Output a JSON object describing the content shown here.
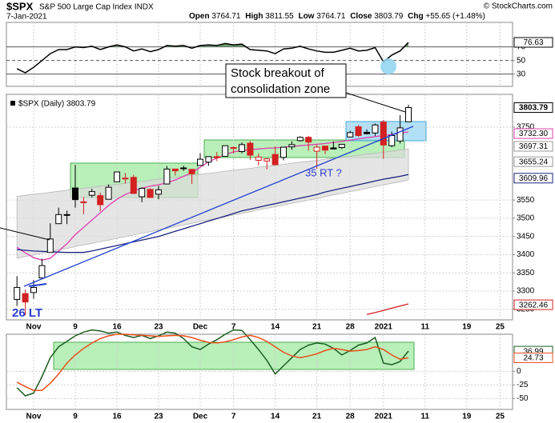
{
  "header": {
    "symbol": "$SPX",
    "name": "S&P 500 Large Cap Index INDX",
    "date": "7-Jan-2021",
    "source": "© StockCharts.com",
    "quote": [
      {
        "label": "Open",
        "text": "3764.71"
      },
      {
        "label": "High",
        "text": "3811.55"
      },
      {
        "label": "Low",
        "text": "3764.71"
      },
      {
        "label": "Close",
        "text": "3803.79"
      },
      {
        "label": "Chg",
        "text": "+55.65 (+1.48%)"
      }
    ]
  },
  "annotations": {
    "breakout": [
      "Stock breakout of",
      "consolidation zone"
    ],
    "rt": "35 RT ?",
    "lt": "26 LT"
  },
  "chart_data": [
    {
      "type": "line",
      "ylim": [
        12,
        106
      ],
      "yticks": [
        30,
        50,
        70
      ],
      "grid": true,
      "overbought": 70,
      "oversold": 30,
      "above_color": "#6f9a6f",
      "below_color": "#8a4b8a",
      "value_boxes": true,
      "series": [
        {
          "color": "#000000",
          "values": [
            38,
            32,
            40,
            50,
            60,
            66,
            66,
            70,
            69,
            71,
            66,
            70,
            73,
            70,
            64,
            67,
            63,
            66,
            72,
            71,
            72,
            68,
            72,
            73,
            72,
            75,
            73,
            74,
            66,
            65,
            64,
            60,
            67,
            68,
            71,
            67,
            64,
            62,
            62,
            65,
            68,
            64,
            65,
            69,
            48,
            58,
            64,
            76.63
          ]
        }
      ]
    },
    {
      "type": "candlestick",
      "legend": "$SPX (Daily) 3803.79",
      "categories": [
        null,
        null,
        "Nov",
        null,
        null,
        null,
        null,
        "9",
        null,
        null,
        null,
        null,
        "16",
        null,
        null,
        null,
        null,
        "23",
        null,
        null,
        null,
        null,
        "Dec",
        null,
        null,
        null,
        "7",
        null,
        null,
        null,
        null,
        "14",
        null,
        null,
        null,
        null,
        "21",
        null,
        null,
        null,
        "28",
        null,
        null,
        null,
        "2021",
        null,
        null,
        null,
        null,
        "11",
        null,
        null,
        null,
        null,
        "19",
        null,
        null,
        null,
        "25"
      ],
      "open": [
        3277,
        3293,
        3296,
        3336,
        3406,
        3485,
        3508,
        3583,
        3544,
        3563,
        3562,
        3552,
        3600,
        3610,
        3612,
        3559,
        3579,
        3566,
        3594,
        3635,
        3638,
        3634,
        3645,
        3654,
        3669,
        3670,
        3694,
        3683,
        3706,
        3659,
        3657,
        3675,
        3667,
        3696,
        3713,
        3722,
        3684,
        3698,
        3693,
        3694,
        3723,
        3751,
        3736,
        3734,
        3764,
        3699,
        3712,
        3764.71,
        null,
        null,
        null,
        null,
        null,
        null,
        null,
        null,
        null,
        null,
        null
      ],
      "high": [
        3341,
        3304,
        3330,
        3389,
        3486,
        3529,
        3521,
        3646,
        3558,
        3581,
        3570,
        3593,
        3628,
        3624,
        3619,
        3585,
        3582,
        3589,
        3643,
        3635,
        3644,
        3634,
        3678,
        3670,
        3682,
        3699,
        3697,
        3708,
        3712,
        3678,
        3665,
        3697,
        3695,
        3711,
        3725,
        3726,
        3702,
        3698,
        3711,
        3703,
        3740,
        3756,
        3744,
        3760,
        3770,
        3738,
        3783,
        3811.55,
        null,
        null,
        null,
        null,
        null,
        null,
        null,
        null,
        null,
        null,
        null
      ],
      "low": [
        3259,
        3233,
        3279,
        3336,
        3405,
        3485,
        3484,
        3529,
        3511,
        3557,
        3519,
        3552,
        3600,
        3595,
        3567,
        3544,
        3556,
        3552,
        3594,
        3617,
        3630,
        3594,
        3645,
        3644,
        3657,
        3670,
        3678,
        3678,
        3660,
        3645,
        3634,
        3645,
        3659,
        3688,
        3710,
        3685,
        3636,
        3676,
        3689,
        3690,
        3723,
        3723,
        3730,
        3726,
        3663,
        3695,
        3705,
        3764.71,
        null,
        null,
        null,
        null,
        null,
        null,
        null,
        null,
        null,
        null,
        null
      ],
      "close": [
        3310,
        3270,
        3310,
        3370,
        3443,
        3510,
        3510,
        3551,
        3545,
        3573,
        3537,
        3585,
        3627,
        3610,
        3568,
        3582,
        3557,
        3578,
        3635,
        3630,
        3638,
        3622,
        3662,
        3669,
        3666,
        3699,
        3692,
        3702,
        3673,
        3668,
        3663,
        3647,
        3695,
        3702,
        3722,
        3709,
        3695,
        3687,
        3690,
        3703,
        3735,
        3727,
        3732,
        3756,
        3701,
        3727,
        3748,
        3803.79,
        null,
        null,
        null,
        null,
        null,
        null,
        null,
        null,
        null,
        null,
        null
      ],
      "up_color": "#000000",
      "down_color": "#d32020",
      "ylim": [
        3221,
        3840
      ],
      "yticks": [
        3250,
        3300,
        3350,
        3400,
        3450,
        3500,
        3550,
        3750
      ],
      "grid": true,
      "band": {
        "color": "#dcdcdc",
        "upper": [
          3560,
          3563,
          3566,
          3568,
          3571,
          3574,
          3577,
          3579,
          3582,
          3585,
          3588,
          3590,
          3593,
          3596,
          3599,
          3601,
          3604,
          3607,
          3610,
          3612,
          3615,
          3618,
          3621,
          3623,
          3626,
          3629,
          3632,
          3634,
          3637,
          3640,
          3643,
          3645,
          3648,
          3651,
          3654,
          3656,
          3659,
          3662,
          3665,
          3667,
          3670,
          3673,
          3676,
          3678,
          3681,
          3684,
          3687,
          3690,
          null,
          null,
          null,
          null,
          null,
          null,
          null,
          null,
          null,
          null,
          null
        ],
        "lower": [
          3390,
          3395,
          3399,
          3404,
          3408,
          3413,
          3417,
          3422,
          3427,
          3431,
          3436,
          3440,
          3445,
          3449,
          3454,
          3459,
          3463,
          3468,
          3472,
          3477,
          3481,
          3486,
          3491,
          3495,
          3500,
          3504,
          3509,
          3513,
          3518,
          3523,
          3527,
          3532,
          3536,
          3541,
          3545,
          3550,
          3554,
          3559,
          3564,
          3568,
          3573,
          3577,
          3582,
          3587,
          3591,
          3596,
          3600,
          3605,
          null,
          null,
          null,
          null,
          null,
          null,
          null,
          null,
          null,
          null,
          null
        ]
      },
      "series": [
        {
          "color": "#e040b0",
          "values": [
            3420,
            3405,
            3392,
            3385,
            3390,
            3410,
            3430,
            3455,
            3475,
            3495,
            3515,
            3535,
            3552,
            3565,
            3575,
            3582,
            3588,
            3592,
            3597,
            3605,
            3615,
            3625,
            3640,
            3655,
            3665,
            3675,
            3682,
            3686,
            3688,
            3690,
            3692,
            3693,
            3695,
            3697,
            3699,
            3701,
            3703,
            3705,
            3708,
            3711,
            3714,
            3718,
            3721,
            3724,
            3727,
            3730,
            3733,
            3737,
            null,
            null,
            null,
            null,
            null,
            null,
            null,
            null,
            null,
            null,
            null
          ]
        },
        {
          "color": "#1a237e",
          "values": [
            3414,
            3412,
            3410,
            3409,
            3408,
            3407,
            3406,
            3406,
            3406,
            3410,
            3415,
            3420,
            3425,
            3430,
            3435,
            3440,
            3445,
            3450,
            3457,
            3464,
            3471,
            3478,
            3485,
            3492,
            3499,
            3506,
            3513,
            3520,
            3525,
            3530,
            3535,
            3540,
            3545,
            3550,
            3555,
            3560,
            3565,
            3572,
            3577,
            3582,
            3587,
            3592,
            3597,
            3602,
            3607,
            3611,
            3615,
            3620,
            null,
            null,
            null,
            null,
            null,
            null,
            null,
            null,
            null,
            null,
            null
          ]
        },
        {
          "color": "#d32020",
          "values": [
            null,
            null,
            null,
            null,
            null,
            null,
            null,
            null,
            null,
            null,
            null,
            null,
            null,
            null,
            null,
            null,
            null,
            null,
            null,
            null,
            null,
            null,
            null,
            null,
            null,
            null,
            null,
            null,
            null,
            null,
            null,
            null,
            null,
            null,
            null,
            null,
            null,
            null,
            null,
            null,
            null,
            null,
            3236,
            3241,
            3247,
            3253,
            3259,
            3265,
            null,
            null,
            null,
            null,
            null,
            null,
            null,
            null,
            null,
            null,
            null
          ]
        }
      ],
      "price_labels": [
        3803.79,
        {
          "value": 3732.3,
          "label": "3732.30"
        },
        3697.31,
        3655.24,
        3609.96,
        3262.46
      ],
      "price_label_colors": [
        "#000000",
        "#e040b0",
        "#999999",
        "#999999",
        "#1a237e",
        "#d32020"
      ]
    },
    {
      "type": "line",
      "categories": [
        null,
        null,
        "Nov",
        null,
        null,
        null,
        null,
        "9",
        null,
        null,
        null,
        null,
        "16",
        null,
        null,
        null,
        null,
        "23",
        null,
        null,
        null,
        null,
        "Dec",
        null,
        null,
        null,
        "7",
        null,
        null,
        null,
        null,
        "14",
        null,
        null,
        null,
        null,
        "21",
        null,
        null,
        null,
        "28",
        null,
        null,
        null,
        "2021",
        null,
        null,
        null,
        null,
        "11",
        null,
        null,
        null,
        null,
        "19",
        null,
        null,
        null,
        "25"
      ],
      "ylim": [
        -70,
        68
      ],
      "yticks": [
        -50,
        -25,
        0
      ],
      "grid": true,
      "value_boxes": true,
      "series": [
        {
          "color": "#1b5e20",
          "values": [
            -30,
            -45,
            -40,
            -10,
            25,
            45,
            55,
            65,
            72,
            76,
            74,
            70,
            72,
            66,
            62,
            66,
            60,
            65,
            72,
            70,
            60,
            45,
            40,
            50,
            58,
            68,
            76,
            75,
            58,
            40,
            20,
            -5,
            10,
            25,
            40,
            48,
            52,
            50,
            42,
            30,
            38,
            48,
            52,
            62,
            15,
            12,
            18,
            36.99,
            null,
            null,
            null,
            null,
            null,
            null,
            null,
            null,
            null,
            null,
            null
          ]
        },
        {
          "color": "#e8501e",
          "values": [
            -20,
            -28,
            -35,
            -35,
            -22,
            -5,
            15,
            30,
            42,
            52,
            60,
            65,
            68,
            68,
            67,
            66,
            65,
            64,
            65,
            66,
            65,
            62,
            57,
            53,
            52,
            54,
            58,
            63,
            66,
            62,
            55,
            45,
            35,
            28,
            25,
            28,
            32,
            38,
            42,
            40,
            37,
            38,
            40,
            45,
            40,
            30,
            22,
            24.73,
            null,
            null,
            null,
            null,
            null,
            null,
            null,
            null,
            null,
            null,
            null
          ]
        }
      ]
    }
  ]
}
